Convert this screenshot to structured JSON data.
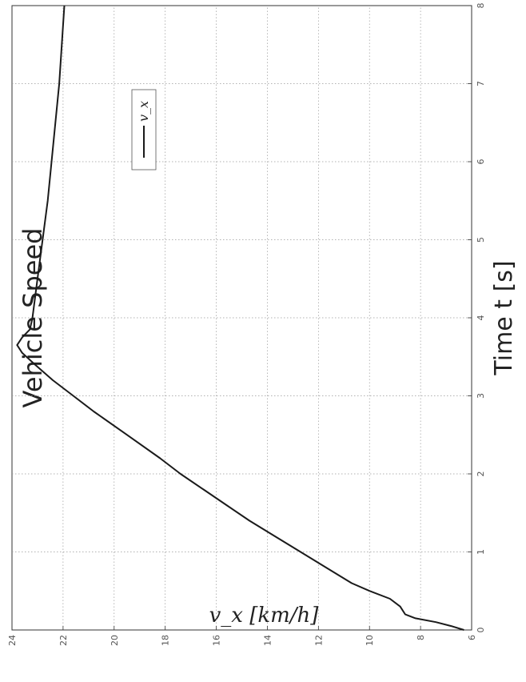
{
  "chart_data": {
    "type": "line",
    "title": "Vehicle Speed",
    "xlabel": "Time t  [s]",
    "ylabel": "v_x [km/h]",
    "xlim": [
      0,
      8
    ],
    "ylim": [
      6,
      24
    ],
    "xticks": [
      "0",
      "1",
      "2",
      "3",
      "4",
      "5",
      "6",
      "7",
      "8"
    ],
    "yticks": [
      "6",
      "8",
      "10",
      "12",
      "14",
      "16",
      "18",
      "20",
      "22",
      "24"
    ],
    "grid": true,
    "legend_position": "top-right",
    "series": [
      {
        "name": "v_x",
        "color": "#1a1a1a",
        "points": [
          [
            0.0,
            6.3
          ],
          [
            0.05,
            6.8
          ],
          [
            0.1,
            7.4
          ],
          [
            0.15,
            8.2
          ],
          [
            0.2,
            8.6
          ],
          [
            0.3,
            8.8
          ],
          [
            0.4,
            9.2
          ],
          [
            0.5,
            10.0
          ],
          [
            0.6,
            10.7
          ],
          [
            0.8,
            11.7
          ],
          [
            1.0,
            12.7
          ],
          [
            1.2,
            13.7
          ],
          [
            1.4,
            14.7
          ],
          [
            1.6,
            15.6
          ],
          [
            1.8,
            16.5
          ],
          [
            2.0,
            17.4
          ],
          [
            2.2,
            18.2
          ],
          [
            2.5,
            19.5
          ],
          [
            2.8,
            20.8
          ],
          [
            3.0,
            21.6
          ],
          [
            3.2,
            22.4
          ],
          [
            3.4,
            23.1
          ],
          [
            3.55,
            23.6
          ],
          [
            3.65,
            23.8
          ],
          [
            3.75,
            23.6
          ],
          [
            3.85,
            23.3
          ],
          [
            4.0,
            23.2
          ],
          [
            4.5,
            23.0
          ],
          [
            5.0,
            22.8
          ],
          [
            5.5,
            22.6
          ],
          [
            6.0,
            22.45
          ],
          [
            6.5,
            22.3
          ],
          [
            7.0,
            22.15
          ],
          [
            7.5,
            22.05
          ],
          [
            8.0,
            21.95
          ]
        ]
      }
    ]
  }
}
